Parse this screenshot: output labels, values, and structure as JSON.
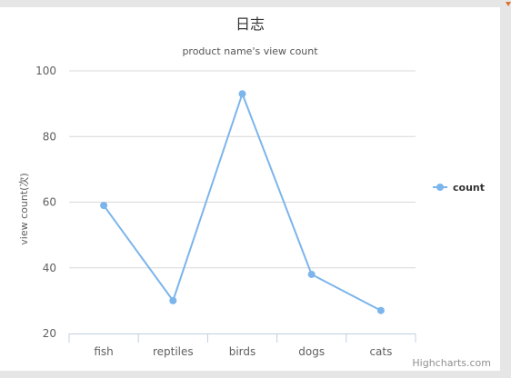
{
  "chart_data": {
    "type": "line",
    "title": "日志",
    "subtitle": "product name's view count",
    "xlabel": "",
    "ylabel": "view count(次)",
    "categories": [
      "fish",
      "reptiles",
      "birds",
      "dogs",
      "cats"
    ],
    "series": [
      {
        "name": "count",
        "values": [
          59,
          30,
          93,
          38,
          27
        ]
      }
    ],
    "ylim": [
      20,
      100
    ],
    "yticks": [
      20,
      40,
      60,
      80,
      100
    ],
    "grid": true,
    "legend": "right",
    "credits": "Highcharts.com"
  },
  "colors": {
    "series": "#7cb5ec",
    "grid": "#d8d8d8",
    "axis": "#c0d0e0",
    "title": "#333333",
    "text": "#606060",
    "legend_text": "#333333",
    "credits": "#909090",
    "corner_mark": "#e0702a"
  }
}
